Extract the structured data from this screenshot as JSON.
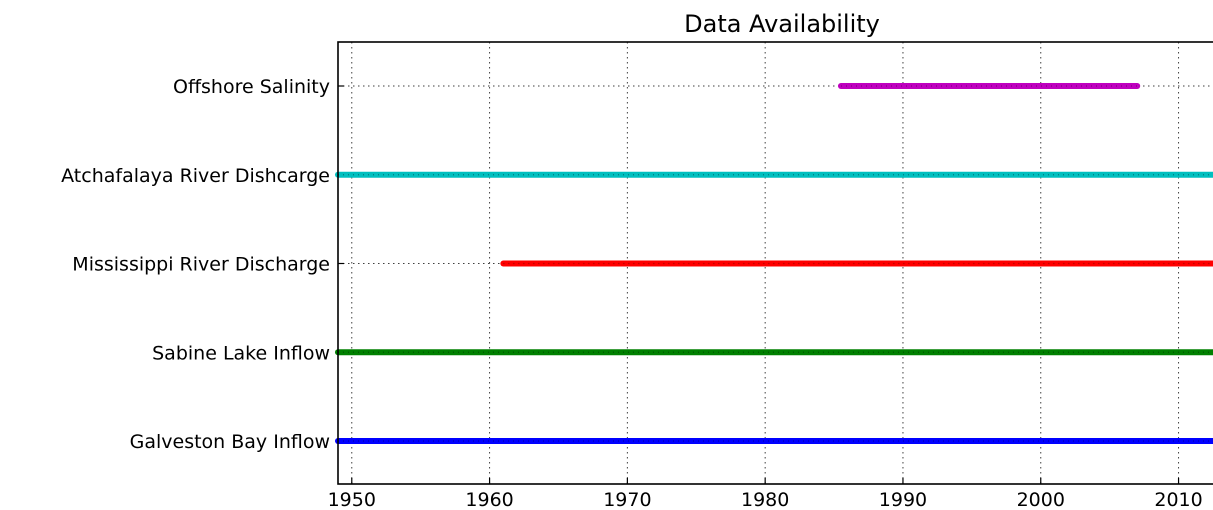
{
  "chart_data": {
    "type": "timeline",
    "title": "Data Availability",
    "xlabel": "",
    "ylabel": "",
    "xlim": [
      1949,
      2012.5
    ],
    "x_ticks": [
      1950,
      1960,
      1970,
      1980,
      1990,
      2000,
      2010
    ],
    "grid": true,
    "series": [
      {
        "name": "Offshore Salinity",
        "start": 1985.5,
        "end": 2007.0,
        "color": "#bf00bf"
      },
      {
        "name": "Atchafalaya River Dishcarge",
        "start": 1949,
        "end": 2012.5,
        "color": "#00bfbf"
      },
      {
        "name": "Mississippi River Discharge",
        "start": 1961.0,
        "end": 2012.5,
        "color": "#ff0000"
      },
      {
        "name": "Sabine Lake Inflow",
        "start": 1949,
        "end": 2012.5,
        "color": "#008000"
      },
      {
        "name": "Galveston Bay Inflow",
        "start": 1949,
        "end": 2012.5,
        "color": "#0000ff"
      }
    ]
  }
}
